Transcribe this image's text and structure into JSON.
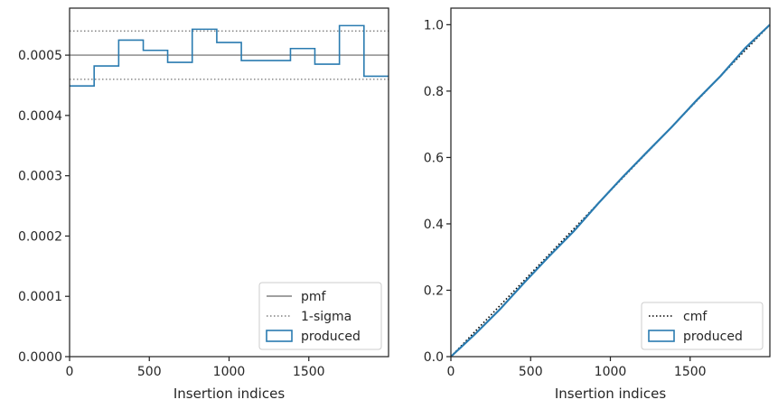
{
  "chart_data": [
    {
      "type": "step-histogram",
      "xlabel": "Insertion indices",
      "ylabel": "",
      "xlim": [
        0,
        2000
      ],
      "ylim": [
        0,
        0.000578
      ],
      "x_ticks": [
        0,
        500,
        1000,
        1500
      ],
      "x_tick_labels": [
        "0",
        "500",
        "1000",
        "1500"
      ],
      "y_ticks": [
        0,
        0.0001,
        0.0002,
        0.0003,
        0.0004,
        0.0005
      ],
      "y_tick_labels": [
        "0.0000",
        "0.0001",
        "0.0002",
        "0.0003",
        "0.0004",
        "0.0005"
      ],
      "grid": false,
      "legend_position": "lower-right",
      "bin_edges": [
        0,
        154,
        308,
        462,
        615,
        769,
        923,
        1077,
        1231,
        1385,
        1538,
        1692,
        1846,
        2000
      ],
      "series": [
        {
          "name": "produced",
          "values": [
            0.000449,
            0.000482,
            0.000525,
            0.000508,
            0.000488,
            0.000543,
            0.000521,
            0.000491,
            0.000491,
            0.000511,
            0.000485,
            0.000549,
            0.000465
          ],
          "color": "#2a7bb0"
        }
      ],
      "reference_lines": [
        {
          "name": "pmf",
          "y": 0.0005,
          "style": "solid",
          "color": "#808080"
        },
        {
          "name": "1-sigma",
          "y": 0.00054,
          "style": "dotted",
          "color": "#808080"
        },
        {
          "name": "1-sigma",
          "y": 0.00046,
          "style": "dotted",
          "color": "#808080"
        }
      ],
      "legend": [
        "pmf",
        "1-sigma",
        "produced"
      ]
    },
    {
      "type": "line",
      "xlabel": "Insertion indices",
      "ylabel": "",
      "xlim": [
        0,
        2000
      ],
      "ylim": [
        0,
        1.05
      ],
      "x_ticks": [
        0,
        500,
        1000,
        1500
      ],
      "x_tick_labels": [
        "0",
        "500",
        "1000",
        "1500"
      ],
      "y_ticks": [
        0,
        0.2,
        0.4,
        0.6,
        0.8,
        1.0
      ],
      "y_tick_labels": [
        "0.0",
        "0.2",
        "0.4",
        "0.6",
        "0.8",
        "1.0"
      ],
      "grid": false,
      "legend_position": "lower-right",
      "series": [
        {
          "name": "cmf",
          "style": "dotted",
          "color": "#000000",
          "x": [
            0,
            2000
          ],
          "y": [
            0,
            1.0
          ]
        },
        {
          "name": "produced",
          "style": "solid",
          "color": "#2a7bb0",
          "x": [
            0,
            154,
            308,
            462,
            615,
            769,
            923,
            1077,
            1231,
            1385,
            1538,
            1692,
            1846,
            2000
          ],
          "y": [
            0,
            0.069,
            0.143,
            0.224,
            0.302,
            0.377,
            0.461,
            0.541,
            0.617,
            0.692,
            0.771,
            0.846,
            0.93,
            1.0
          ]
        }
      ],
      "legend": [
        "cmf",
        "produced"
      ]
    }
  ]
}
